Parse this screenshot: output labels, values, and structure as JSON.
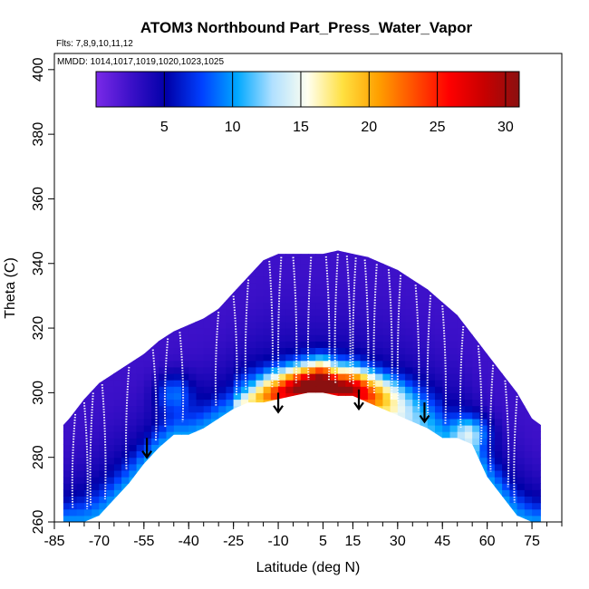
{
  "chart_data": {
    "type": "heatmap",
    "title": "ATOM3 Northbound Part_Press_Water_Vapor",
    "subtitle": "Flts: 7,8,9,10,11,12",
    "inset_label": "MMDD: 1014,1017,1019,1020,1023,1025",
    "xlabel": "Latitude (deg N)",
    "ylabel": "Theta (C)",
    "xlim": [
      -85,
      85
    ],
    "ylim": [
      260,
      405
    ],
    "x_ticks": [
      "-85",
      "-70",
      "-55",
      "-40",
      "-25",
      "-10",
      "5",
      "15",
      "30",
      "45",
      "60",
      "75"
    ],
    "x_tick_values": [
      -85,
      -70,
      -55,
      -40,
      -25,
      -10,
      5,
      15,
      30,
      45,
      60,
      75
    ],
    "y_ticks": [
      "260",
      "280",
      "300",
      "320",
      "340",
      "360",
      "380",
      "400"
    ],
    "y_tick_values": [
      260,
      280,
      300,
      320,
      340,
      360,
      380,
      400
    ],
    "colorbar": {
      "range": [
        0,
        31
      ],
      "ticks": [
        "5",
        "10",
        "15",
        "20",
        "25",
        "30"
      ],
      "tick_values": [
        5,
        10,
        15,
        20,
        25,
        30
      ],
      "colors": [
        "#7a2ae8",
        "#3b10c8",
        "#0000a8",
        "#0040ff",
        "#00a8ff",
        "#b0e0ff",
        "#fffff0",
        "#ffe040",
        "#ffa000",
        "#ff5000",
        "#ff0000",
        "#c80000",
        "#8b1010"
      ]
    },
    "envelope": {
      "lat": [
        -82,
        -80,
        -75,
        -70,
        -65,
        -60,
        -55,
        -50,
        -45,
        -40,
        -35,
        -30,
        -25,
        -20,
        -15,
        -10,
        -5,
        0,
        5,
        10,
        15,
        20,
        25,
        30,
        35,
        40,
        45,
        50,
        55,
        60,
        65,
        70,
        75,
        78
      ],
      "top": [
        290,
        292,
        298,
        303,
        306,
        309,
        312,
        316,
        319,
        321,
        323,
        326,
        331,
        336,
        341,
        343,
        343,
        343,
        343,
        344,
        343,
        342,
        340,
        338,
        335,
        332,
        328,
        324,
        318,
        312,
        306,
        300,
        292,
        290
      ],
      "bottom": [
        260,
        260,
        260,
        262,
        267,
        272,
        278,
        283,
        287,
        287,
        289,
        292,
        295,
        297,
        297,
        298,
        299,
        300,
        300,
        299,
        299,
        297,
        295,
        293,
        291,
        289,
        286,
        286,
        284,
        274,
        268,
        262,
        260,
        260
      ]
    },
    "moist_band": {
      "lat": [
        -25,
        -20,
        -15,
        -10,
        -5,
        0,
        5,
        10,
        15,
        20,
        25,
        30,
        35,
        40,
        45
      ],
      "top": [
        297,
        299,
        301,
        302,
        303,
        304,
        305,
        303,
        303,
        302,
        301,
        300,
        299,
        298,
        296
      ],
      "bottom": [
        295,
        296,
        296,
        297,
        298,
        299,
        300,
        299,
        298,
        296,
        295,
        293,
        291,
        289,
        288
      ],
      "peak_value": 28
    },
    "tropopause_arrows": [
      {
        "lat": -54,
        "theta": 286
      },
      {
        "lat": -10,
        "theta": 300
      },
      {
        "lat": 17,
        "theta": 301
      },
      {
        "lat": 39,
        "theta": 297
      }
    ],
    "flight_track_lats": [
      -78,
      -75,
      -72,
      -69,
      -60,
      -52,
      -47,
      -43,
      -30,
      -25,
      -20,
      -13,
      -9,
      -5,
      1,
      6,
      10,
      13,
      16,
      19,
      23,
      27,
      31,
      36,
      41,
      45,
      52,
      57,
      62,
      66,
      70
    ]
  }
}
